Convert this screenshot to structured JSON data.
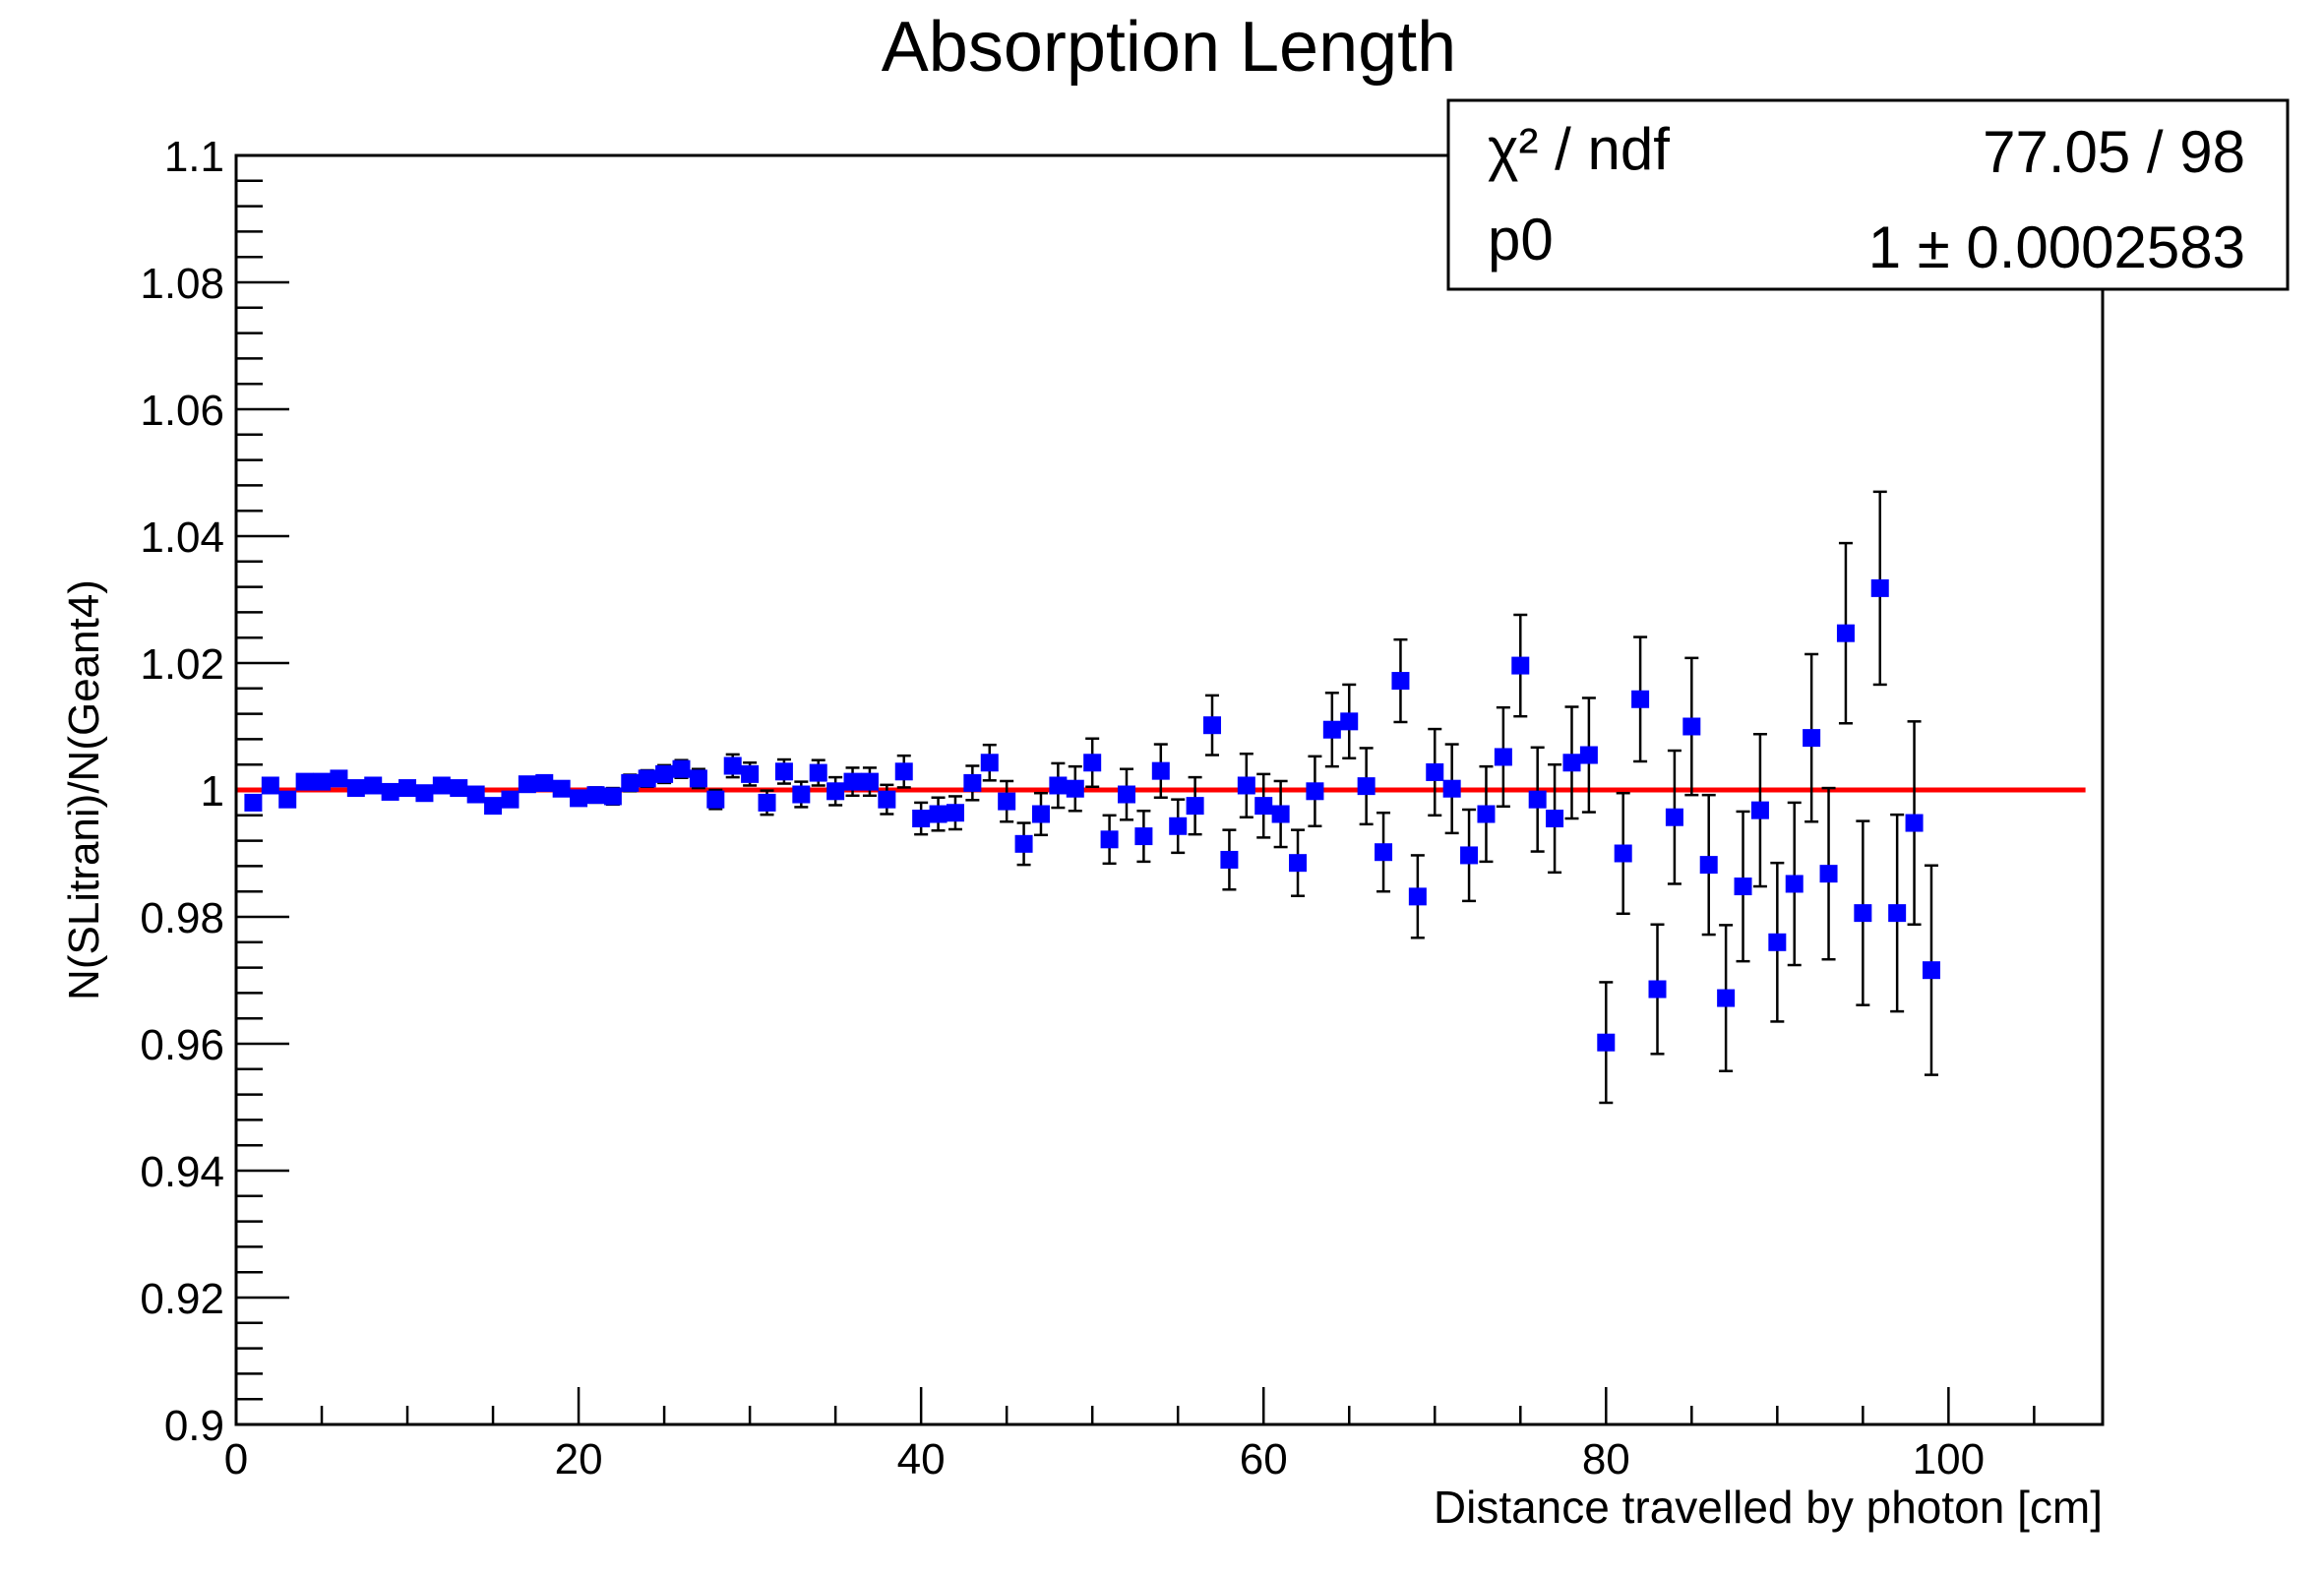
{
  "chart_data": {
    "type": "scatter",
    "title": "Absorption Length",
    "xlabel": "Distance travelled by photon [cm]",
    "ylabel": "N(SLitrani)/N(Geant4)",
    "xlim": [
      0,
      109
    ],
    "ylim": [
      0.9,
      1.1
    ],
    "x_ticks": [
      "0",
      "20",
      "40",
      "60",
      "80",
      "100"
    ],
    "y_ticks": [
      "0.9",
      "0.92",
      "0.94",
      "0.96",
      "0.98",
      "1",
      "1.02",
      "1.04",
      "1.06",
      "1.08",
      "1.1"
    ],
    "grid": false,
    "marker_color": "#0000ff",
    "fit_color": "#ff0000",
    "fit_line": {
      "y": 1.0,
      "x_range": [
        0,
        108
      ]
    },
    "stats": {
      "row1_label": "χ² / ndf",
      "row1_value": "77.05 / 98",
      "row2_label": "p0",
      "row2_value": "1 ± 0.0002583"
    },
    "series": [
      {
        "points": [
          [
            1,
            0.998,
            0.0008
          ],
          [
            2,
            1.0007,
            0.0008
          ],
          [
            3,
            0.9985,
            0.0009
          ],
          [
            4,
            1.0013,
            0.0009
          ],
          [
            5,
            1.0013,
            0.0009
          ],
          [
            6,
            1.0018,
            0.0009
          ],
          [
            7,
            1.0003,
            0.001
          ],
          [
            8,
            1.0007,
            0.001
          ],
          [
            9,
            0.9997,
            0.001
          ],
          [
            10,
            1.0003,
            0.001
          ],
          [
            11,
            0.9995,
            0.001
          ],
          [
            12,
            1.0007,
            0.001
          ],
          [
            13,
            1.0003,
            0.001
          ],
          [
            14,
            0.9993,
            0.001
          ],
          [
            15,
            0.9975,
            0.001
          ],
          [
            16,
            0.9985,
            0.001
          ],
          [
            17,
            1.0009,
            0.001
          ],
          [
            18,
            1.0011,
            0.001
          ],
          [
            19,
            1.0002,
            0.0011
          ],
          [
            20,
            0.9987,
            0.0011
          ],
          [
            21,
            0.9992,
            0.0012
          ],
          [
            22,
            0.999,
            0.0013
          ],
          [
            23,
            1.0011,
            0.0013
          ],
          [
            24,
            1.0018,
            0.0013
          ],
          [
            25,
            1.0025,
            0.0014
          ],
          [
            26,
            1.0033,
            0.0014
          ],
          [
            27,
            1.0018,
            0.0015
          ],
          [
            28,
            0.9985,
            0.0015
          ],
          [
            29,
            1.0038,
            0.0018
          ],
          [
            30,
            1.0025,
            0.0018
          ],
          [
            31,
            0.998,
            0.0019
          ],
          [
            32,
            1.0029,
            0.0019
          ],
          [
            33,
            0.9993,
            0.002
          ],
          [
            34,
            1.0027,
            0.002
          ],
          [
            35,
            0.9998,
            0.0022
          ],
          [
            36,
            1.0013,
            0.0022
          ],
          [
            37,
            1.0013,
            0.0022
          ],
          [
            38,
            0.9985,
            0.0023
          ],
          [
            39,
            1.0029,
            0.0025
          ],
          [
            40,
            0.9955,
            0.0025
          ],
          [
            41,
            0.9962,
            0.0026
          ],
          [
            42,
            0.9964,
            0.0026
          ],
          [
            43,
            1.0011,
            0.0027
          ],
          [
            44,
            1.0043,
            0.0028
          ],
          [
            45,
            0.9982,
            0.0032
          ],
          [
            46,
            0.9915,
            0.0033
          ],
          [
            47,
            0.9962,
            0.0033
          ],
          [
            48,
            1.0007,
            0.0035
          ],
          [
            49,
            1.0002,
            0.0035
          ],
          [
            50,
            1.0043,
            0.0038
          ],
          [
            51,
            0.9922,
            0.0038
          ],
          [
            52,
            0.9993,
            0.004
          ],
          [
            53,
            0.9927,
            0.004
          ],
          [
            54,
            1.003,
            0.0042
          ],
          [
            55,
            0.9943,
            0.0042
          ],
          [
            56,
            0.9975,
            0.0045
          ],
          [
            57,
            1.0102,
            0.0047
          ],
          [
            58,
            0.989,
            0.0047
          ],
          [
            59,
            1.0007,
            0.005
          ],
          [
            60,
            0.9975,
            0.005
          ],
          [
            61,
            0.9962,
            0.0052
          ],
          [
            62,
            0.9885,
            0.0052
          ],
          [
            63,
            0.9998,
            0.0055
          ],
          [
            64,
            1.0095,
            0.0058
          ],
          [
            65,
            1.0108,
            0.0058
          ],
          [
            66,
            1.0006,
            0.006
          ],
          [
            67,
            0.9902,
            0.0062
          ],
          [
            68,
            1.0172,
            0.0065
          ],
          [
            69,
            0.9832,
            0.0065
          ],
          [
            70,
            1.0028,
            0.0068
          ],
          [
            71,
            1.0002,
            0.007
          ],
          [
            72,
            0.9897,
            0.0072
          ],
          [
            73,
            0.9962,
            0.0075
          ],
          [
            74,
            1.0052,
            0.0078
          ],
          [
            75,
            1.0196,
            0.008
          ],
          [
            76,
            0.9985,
            0.0082
          ],
          [
            77,
            0.9955,
            0.0085
          ],
          [
            78,
            1.0043,
            0.0088
          ],
          [
            79,
            1.0055,
            0.009
          ],
          [
            80,
            0.9602,
            0.0095
          ],
          [
            81,
            0.99,
            0.0095
          ],
          [
            82,
            1.0143,
            0.0098
          ],
          [
            83,
            0.9686,
            0.0102
          ],
          [
            84,
            0.9957,
            0.0105
          ],
          [
            85,
            1.01,
            0.0108
          ],
          [
            86,
            0.9882,
            0.011
          ],
          [
            87,
            0.9672,
            0.0115
          ],
          [
            88,
            0.9848,
            0.0118
          ],
          [
            89,
            0.9968,
            0.012
          ],
          [
            90,
            0.976,
            0.0125
          ],
          [
            91,
            0.9852,
            0.0128
          ],
          [
            92,
            1.0082,
            0.0132
          ],
          [
            93,
            0.9868,
            0.0135
          ],
          [
            94,
            1.0247,
            0.0142
          ],
          [
            95,
            0.9806,
            0.0145
          ],
          [
            96,
            1.0318,
            0.0152
          ],
          [
            97,
            0.9806,
            0.0155
          ],
          [
            98,
            0.9948,
            0.016
          ],
          [
            99,
            0.9716,
            0.0165
          ]
        ]
      }
    ]
  }
}
